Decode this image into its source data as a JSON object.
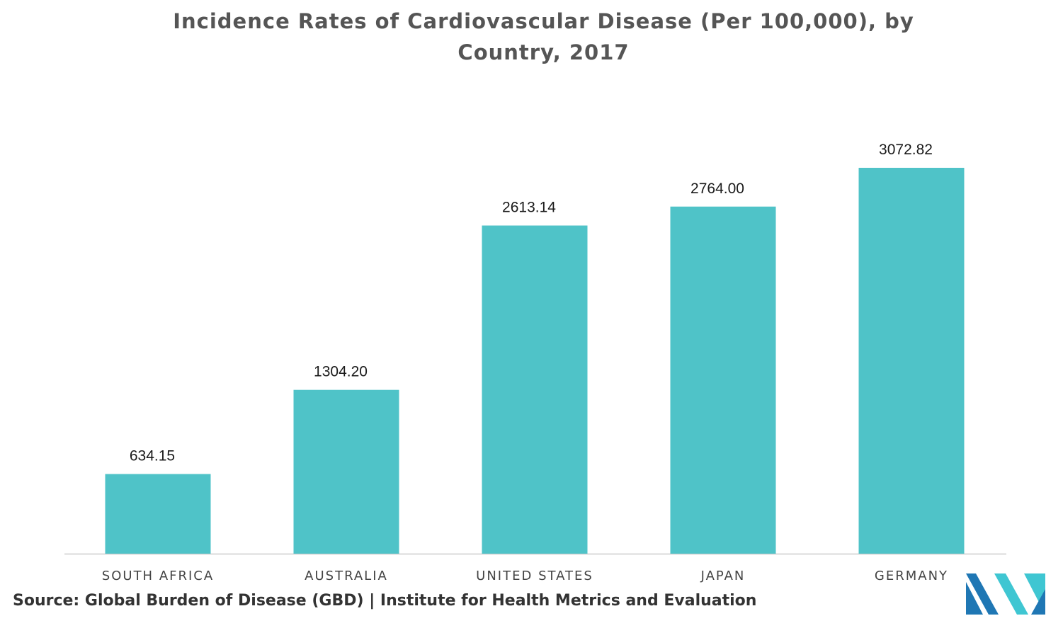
{
  "chart_data": {
    "type": "bar",
    "title": "Incidence Rates of Cardiovascular Disease (Per 100,000), by Country, 2017",
    "title_lines": [
      "Incidence Rates of Cardiovascular Disease (Per 100,000), by",
      "Country, 2017"
    ],
    "categories": [
      "SOUTH AFRICA",
      "AUSTRALIA",
      "UNITED STATES",
      "JAPAN",
      "GERMANY"
    ],
    "values": [
      634.15,
      1304.2,
      2613.14,
      2764.0,
      3072.82
    ],
    "value_labels": [
      "634.15",
      "1304.20",
      "2613.14",
      "2764.00",
      "3072.82"
    ],
    "xlabel": "",
    "ylabel": "",
    "ylim": [
      0,
      3500
    ],
    "grid": false,
    "legend": "none",
    "bar_color": "#4fc3c8",
    "axis_color": "#cccccc"
  },
  "source": "Source: Global Burden of Disease (GBD) | Institute for Health Metrics and Evaluation",
  "logo": {
    "icon": "mordor-logo-icon",
    "colors": [
      "#1f77b4",
      "#3fc6d2"
    ]
  }
}
